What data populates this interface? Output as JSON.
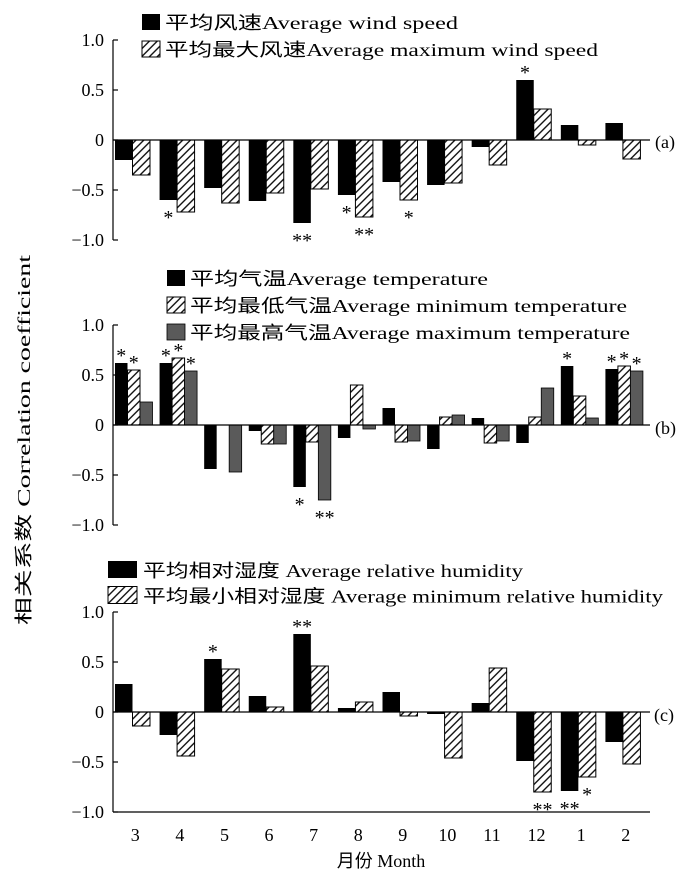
{
  "figure": {
    "ylabel": "相关系数 Correlation coefficient",
    "xlabel": "月份 Month",
    "colors": {
      "black": "#000000",
      "gray": "#5a5a5a",
      "hatch_line": "#000000",
      "background": "#ffffff"
    }
  },
  "chart_data": [
    {
      "type": "bar",
      "panel_label": "(a)",
      "categories": [
        "3",
        "4",
        "5",
        "6",
        "7",
        "8",
        "9",
        "10",
        "11",
        "12",
        "1",
        "2"
      ],
      "ylim": [
        -1.0,
        1.0
      ],
      "yticks": [
        1.0,
        0.5,
        0,
        -0.5,
        -1.0
      ],
      "ytick_labels": [
        "1.0",
        "0.5",
        "0",
        "−0.5",
        "−1.0"
      ],
      "grid": false,
      "legend_position": "top-left",
      "series": [
        {
          "name": "平均风速Average wind speed",
          "fill_style": "solid",
          "color": "#000000",
          "values": [
            -0.2,
            -0.6,
            -0.48,
            -0.61,
            -0.83,
            -0.55,
            -0.42,
            -0.45,
            -0.07,
            0.6,
            0.15,
            0.17
          ],
          "significance": [
            "",
            "*",
            "",
            "",
            "**",
            "*",
            "",
            "",
            "",
            "*",
            "",
            ""
          ]
        },
        {
          "name": "平均最大风速Average maximum wind speed",
          "fill_style": "hatched",
          "color": "#000000",
          "values": [
            -0.35,
            -0.72,
            -0.63,
            -0.53,
            -0.49,
            -0.77,
            -0.6,
            -0.43,
            -0.25,
            0.31,
            -0.05,
            -0.19
          ],
          "significance": [
            "",
            "",
            "",
            "",
            "",
            "**",
            "*",
            "",
            "",
            "",
            "",
            ""
          ]
        }
      ]
    },
    {
      "type": "bar",
      "panel_label": "(b)",
      "categories": [
        "3",
        "4",
        "5",
        "6",
        "7",
        "8",
        "9",
        "10",
        "11",
        "12",
        "1",
        "2"
      ],
      "ylim": [
        -1.0,
        1.0
      ],
      "yticks": [
        1.0,
        0.5,
        0,
        -0.5,
        -1.0
      ],
      "ytick_labels": [
        "1.0",
        "0.5",
        "0",
        "−0.5",
        "−1.0"
      ],
      "grid": false,
      "legend_position": "top-left",
      "series": [
        {
          "name": "平均气温Average temperature",
          "fill_style": "solid",
          "color": "#000000",
          "values": [
            0.62,
            0.62,
            -0.44,
            -0.06,
            -0.62,
            -0.13,
            0.17,
            -0.24,
            0.07,
            -0.18,
            0.59,
            0.56
          ],
          "significance": [
            "*",
            "*",
            "",
            "",
            "*",
            "",
            "",
            "",
            "",
            "",
            "*",
            "*"
          ]
        },
        {
          "name": "平均最低气温Average minimum temperature",
          "fill_style": "hatched",
          "color": "#000000",
          "values": [
            0.55,
            0.67,
            0.0,
            -0.19,
            -0.17,
            0.4,
            -0.17,
            0.08,
            -0.18,
            0.08,
            0.29,
            0.59
          ],
          "significance": [
            "*",
            "*",
            "",
            "",
            "",
            "",
            "",
            "",
            "",
            "",
            "",
            "*"
          ]
        },
        {
          "name": "平均最高气温Average maximum temperature",
          "fill_style": "solid",
          "color": "#5a5a5a",
          "values": [
            0.23,
            0.54,
            -0.47,
            -0.19,
            -0.75,
            -0.04,
            -0.16,
            0.1,
            -0.16,
            0.37,
            0.07,
            0.54
          ],
          "significance": [
            "",
            "*",
            "",
            "",
            "**",
            "",
            "",
            "",
            "",
            "",
            "",
            "*"
          ]
        }
      ]
    },
    {
      "type": "bar",
      "panel_label": "(c)",
      "categories": [
        "3",
        "4",
        "5",
        "6",
        "7",
        "8",
        "9",
        "10",
        "11",
        "12",
        "1",
        "2"
      ],
      "ylim": [
        -1.0,
        1.0
      ],
      "yticks": [
        1.0,
        0.5,
        0,
        -0.5,
        -1.0
      ],
      "ytick_labels": [
        "1.0",
        "0.5",
        "0",
        "−0.5",
        "−1.0"
      ],
      "grid": false,
      "legend_position": "top-left",
      "series": [
        {
          "name": "平均相对湿度 Average relative humidity",
          "fill_style": "solid",
          "color": "#000000",
          "values": [
            0.28,
            -0.23,
            0.53,
            0.16,
            0.78,
            0.04,
            0.2,
            -0.02,
            0.09,
            -0.49,
            -0.79,
            -0.3
          ],
          "significance": [
            "",
            "",
            "*",
            "",
            "**",
            "",
            "",
            "",
            "",
            "",
            "**",
            ""
          ]
        },
        {
          "name": "平均最小相对湿度 Average minimum relative humidity",
          "fill_style": "hatched",
          "color": "#000000",
          "values": [
            -0.14,
            -0.44,
            0.43,
            0.05,
            0.46,
            0.1,
            -0.04,
            -0.46,
            0.44,
            -0.8,
            -0.65,
            -0.52
          ],
          "significance": [
            "",
            "",
            "",
            "",
            "",
            "",
            "",
            "",
            "",
            "**",
            "*",
            ""
          ]
        }
      ]
    }
  ]
}
